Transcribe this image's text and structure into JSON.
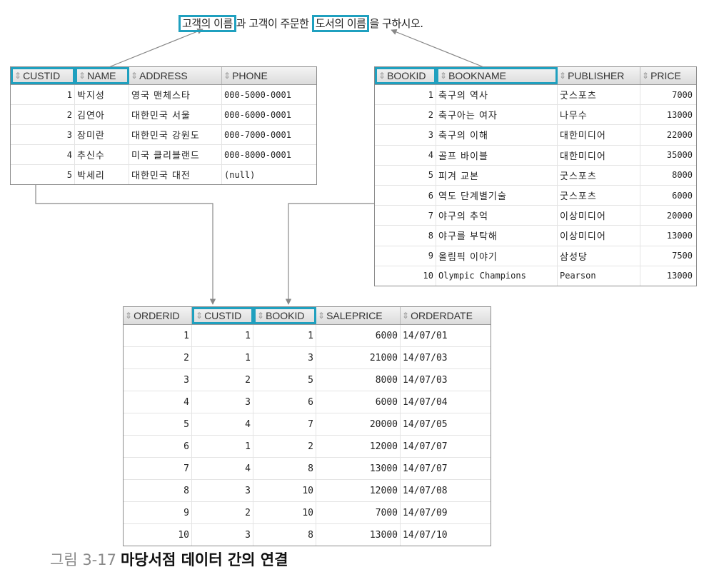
{
  "sentence": {
    "highlight1": "고객의 이름",
    "mid": "과 고객이 주문한",
    "highlight2": "도서의 이름",
    "end": "을 구하시오."
  },
  "customer": {
    "columns": [
      "CUSTID",
      "NAME",
      "ADDRESS",
      "PHONE"
    ],
    "rows": [
      [
        "1",
        "박지성",
        "영국 맨체스타",
        "000-5000-0001"
      ],
      [
        "2",
        "김연아",
        "대한민국 서울",
        "000-6000-0001"
      ],
      [
        "3",
        "장미란",
        "대한민국 강원도",
        "000-7000-0001"
      ],
      [
        "4",
        "추신수",
        "미국 클리블랜드",
        "000-8000-0001"
      ],
      [
        "5",
        "박세리",
        "대한민국 대전",
        "(null)"
      ]
    ]
  },
  "book": {
    "columns": [
      "BOOKID",
      "BOOKNAME",
      "PUBLISHER",
      "PRICE"
    ],
    "rows": [
      [
        "1",
        "축구의 역사",
        "굿스포츠",
        "7000"
      ],
      [
        "2",
        "축구아는 여자",
        "나무수",
        "13000"
      ],
      [
        "3",
        "축구의 이해",
        "대한미디어",
        "22000"
      ],
      [
        "4",
        "골프 바이블",
        "대한미디어",
        "35000"
      ],
      [
        "5",
        "피겨 교본",
        "굿스포츠",
        "8000"
      ],
      [
        "6",
        "역도 단계별기술",
        "굿스포츠",
        "6000"
      ],
      [
        "7",
        "야구의 추억",
        "이상미디어",
        "20000"
      ],
      [
        "8",
        "야구를 부탁해",
        "이상미디어",
        "13000"
      ],
      [
        "9",
        "올림픽 이야기",
        "삼성당",
        "7500"
      ],
      [
        "10",
        "Olympic Champions",
        "Pearson",
        "13000"
      ]
    ]
  },
  "orders": {
    "columns": [
      "ORDERID",
      "CUSTID",
      "BOOKID",
      "SALEPRICE",
      "ORDERDATE"
    ],
    "rows": [
      [
        "1",
        "1",
        "1",
        "6000",
        "14/07/01"
      ],
      [
        "2",
        "1",
        "3",
        "21000",
        "14/07/03"
      ],
      [
        "3",
        "2",
        "5",
        "8000",
        "14/07/03"
      ],
      [
        "4",
        "3",
        "6",
        "6000",
        "14/07/04"
      ],
      [
        "5",
        "4",
        "7",
        "20000",
        "14/07/05"
      ],
      [
        "6",
        "1",
        "2",
        "12000",
        "14/07/07"
      ],
      [
        "7",
        "4",
        "8",
        "13000",
        "14/07/07"
      ],
      [
        "8",
        "3",
        "10",
        "12000",
        "14/07/08"
      ],
      [
        "9",
        "2",
        "10",
        "7000",
        "14/07/09"
      ],
      [
        "10",
        "3",
        "8",
        "13000",
        "14/07/10"
      ]
    ]
  },
  "caption": {
    "label": "그림 3-17",
    "text": "마당서점 데이터 간의 연결"
  },
  "colors": {
    "highlight": "#1fa0bf",
    "arrow": "#888888"
  },
  "icons": {
    "sort": "sort-arrows-icon"
  }
}
